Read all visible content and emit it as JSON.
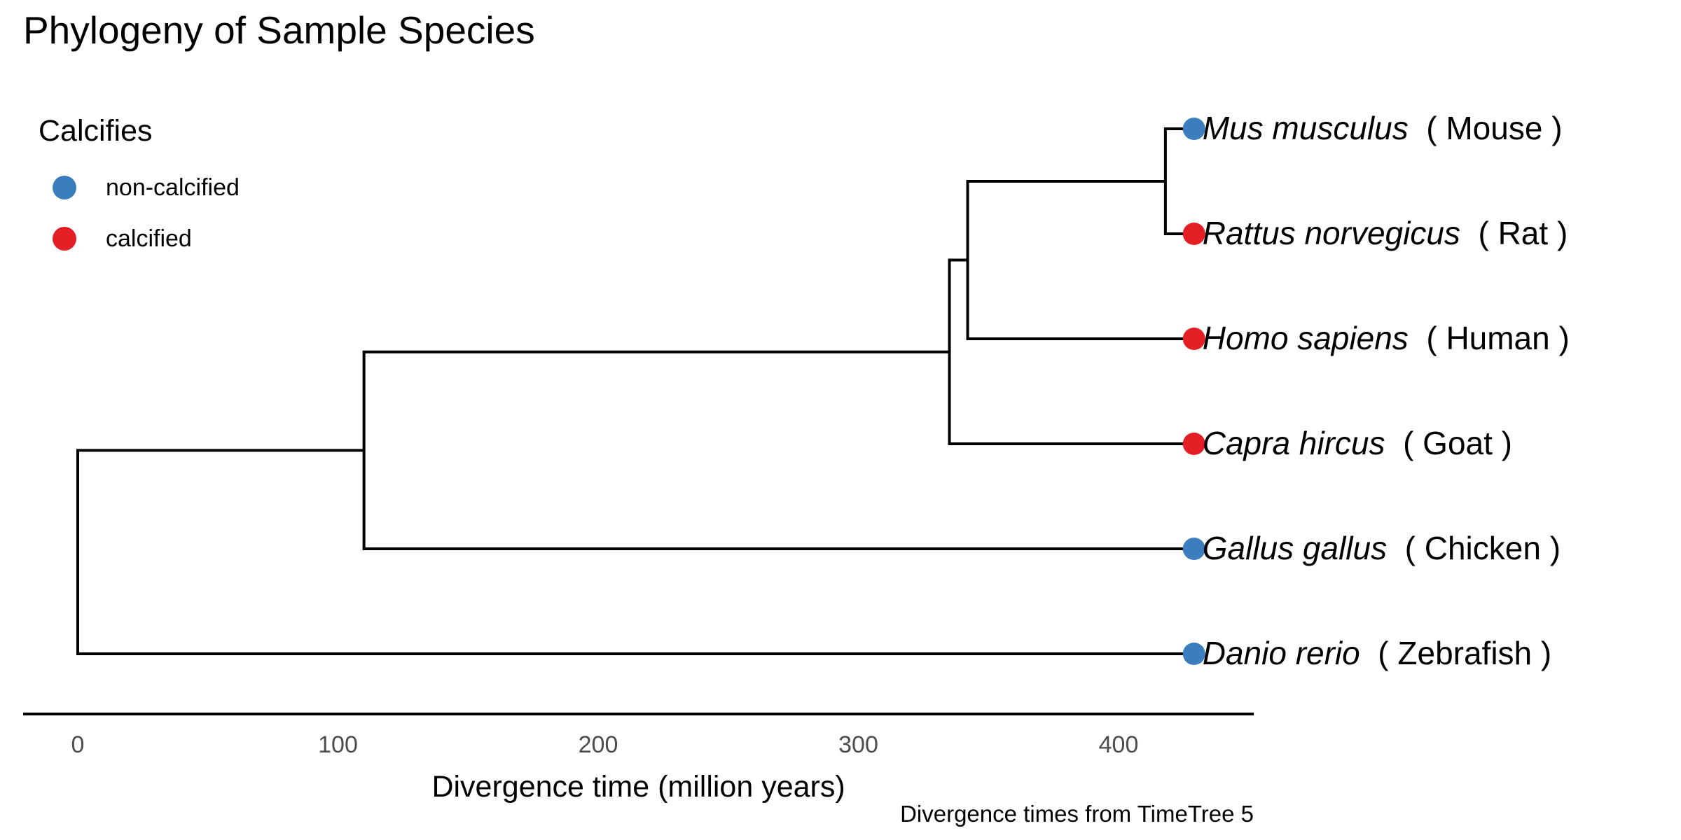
{
  "chart_data": {
    "type": "phylogenetic-tree",
    "title": "Phylogeny of Sample Species",
    "xlabel": "Divergence time (million years)",
    "caption": "Divergence times from TimeTree 5",
    "xlim": [
      -21,
      452
    ],
    "xticks": [
      0,
      100,
      200,
      300,
      400
    ],
    "grid": false,
    "legend": {
      "title": "Calcifies",
      "placement": "top-left",
      "entries": [
        {
          "label": "non-calcified",
          "color": "#3a7ebe"
        },
        {
          "label": "calcified",
          "color": "#e31e24"
        }
      ]
    },
    "tips": [
      {
        "species": "Mus musculus",
        "common": "( Mouse )",
        "calcified": false,
        "time": 429
      },
      {
        "species": "Rattus norvegicus",
        "common": "( Rat )",
        "calcified": true,
        "time": 429
      },
      {
        "species": "Homo sapiens",
        "common": "( Human )",
        "calcified": true,
        "time": 429
      },
      {
        "species": "Capra hircus",
        "common": "( Goat )",
        "calcified": true,
        "time": 429
      },
      {
        "species": "Gallus gallus",
        "common": "( Chicken )",
        "calcified": false,
        "time": 429
      },
      {
        "species": "Danio rerio",
        "common": "( Zebrafish )",
        "calcified": false,
        "time": 429
      }
    ],
    "tree": {
      "time": 0,
      "children": [
        {
          "time": 110,
          "children": [
            {
              "time": 335,
              "children": [
                {
                  "time": 342,
                  "children": [
                    {
                      "time": 418,
                      "children": [
                        {
                          "tip": 0
                        },
                        {
                          "tip": 1
                        }
                      ]
                    },
                    {
                      "tip": 2
                    }
                  ]
                },
                {
                  "tip": 3
                }
              ]
            },
            {
              "tip": 4
            }
          ]
        },
        {
          "tip": 5
        }
      ]
    }
  }
}
